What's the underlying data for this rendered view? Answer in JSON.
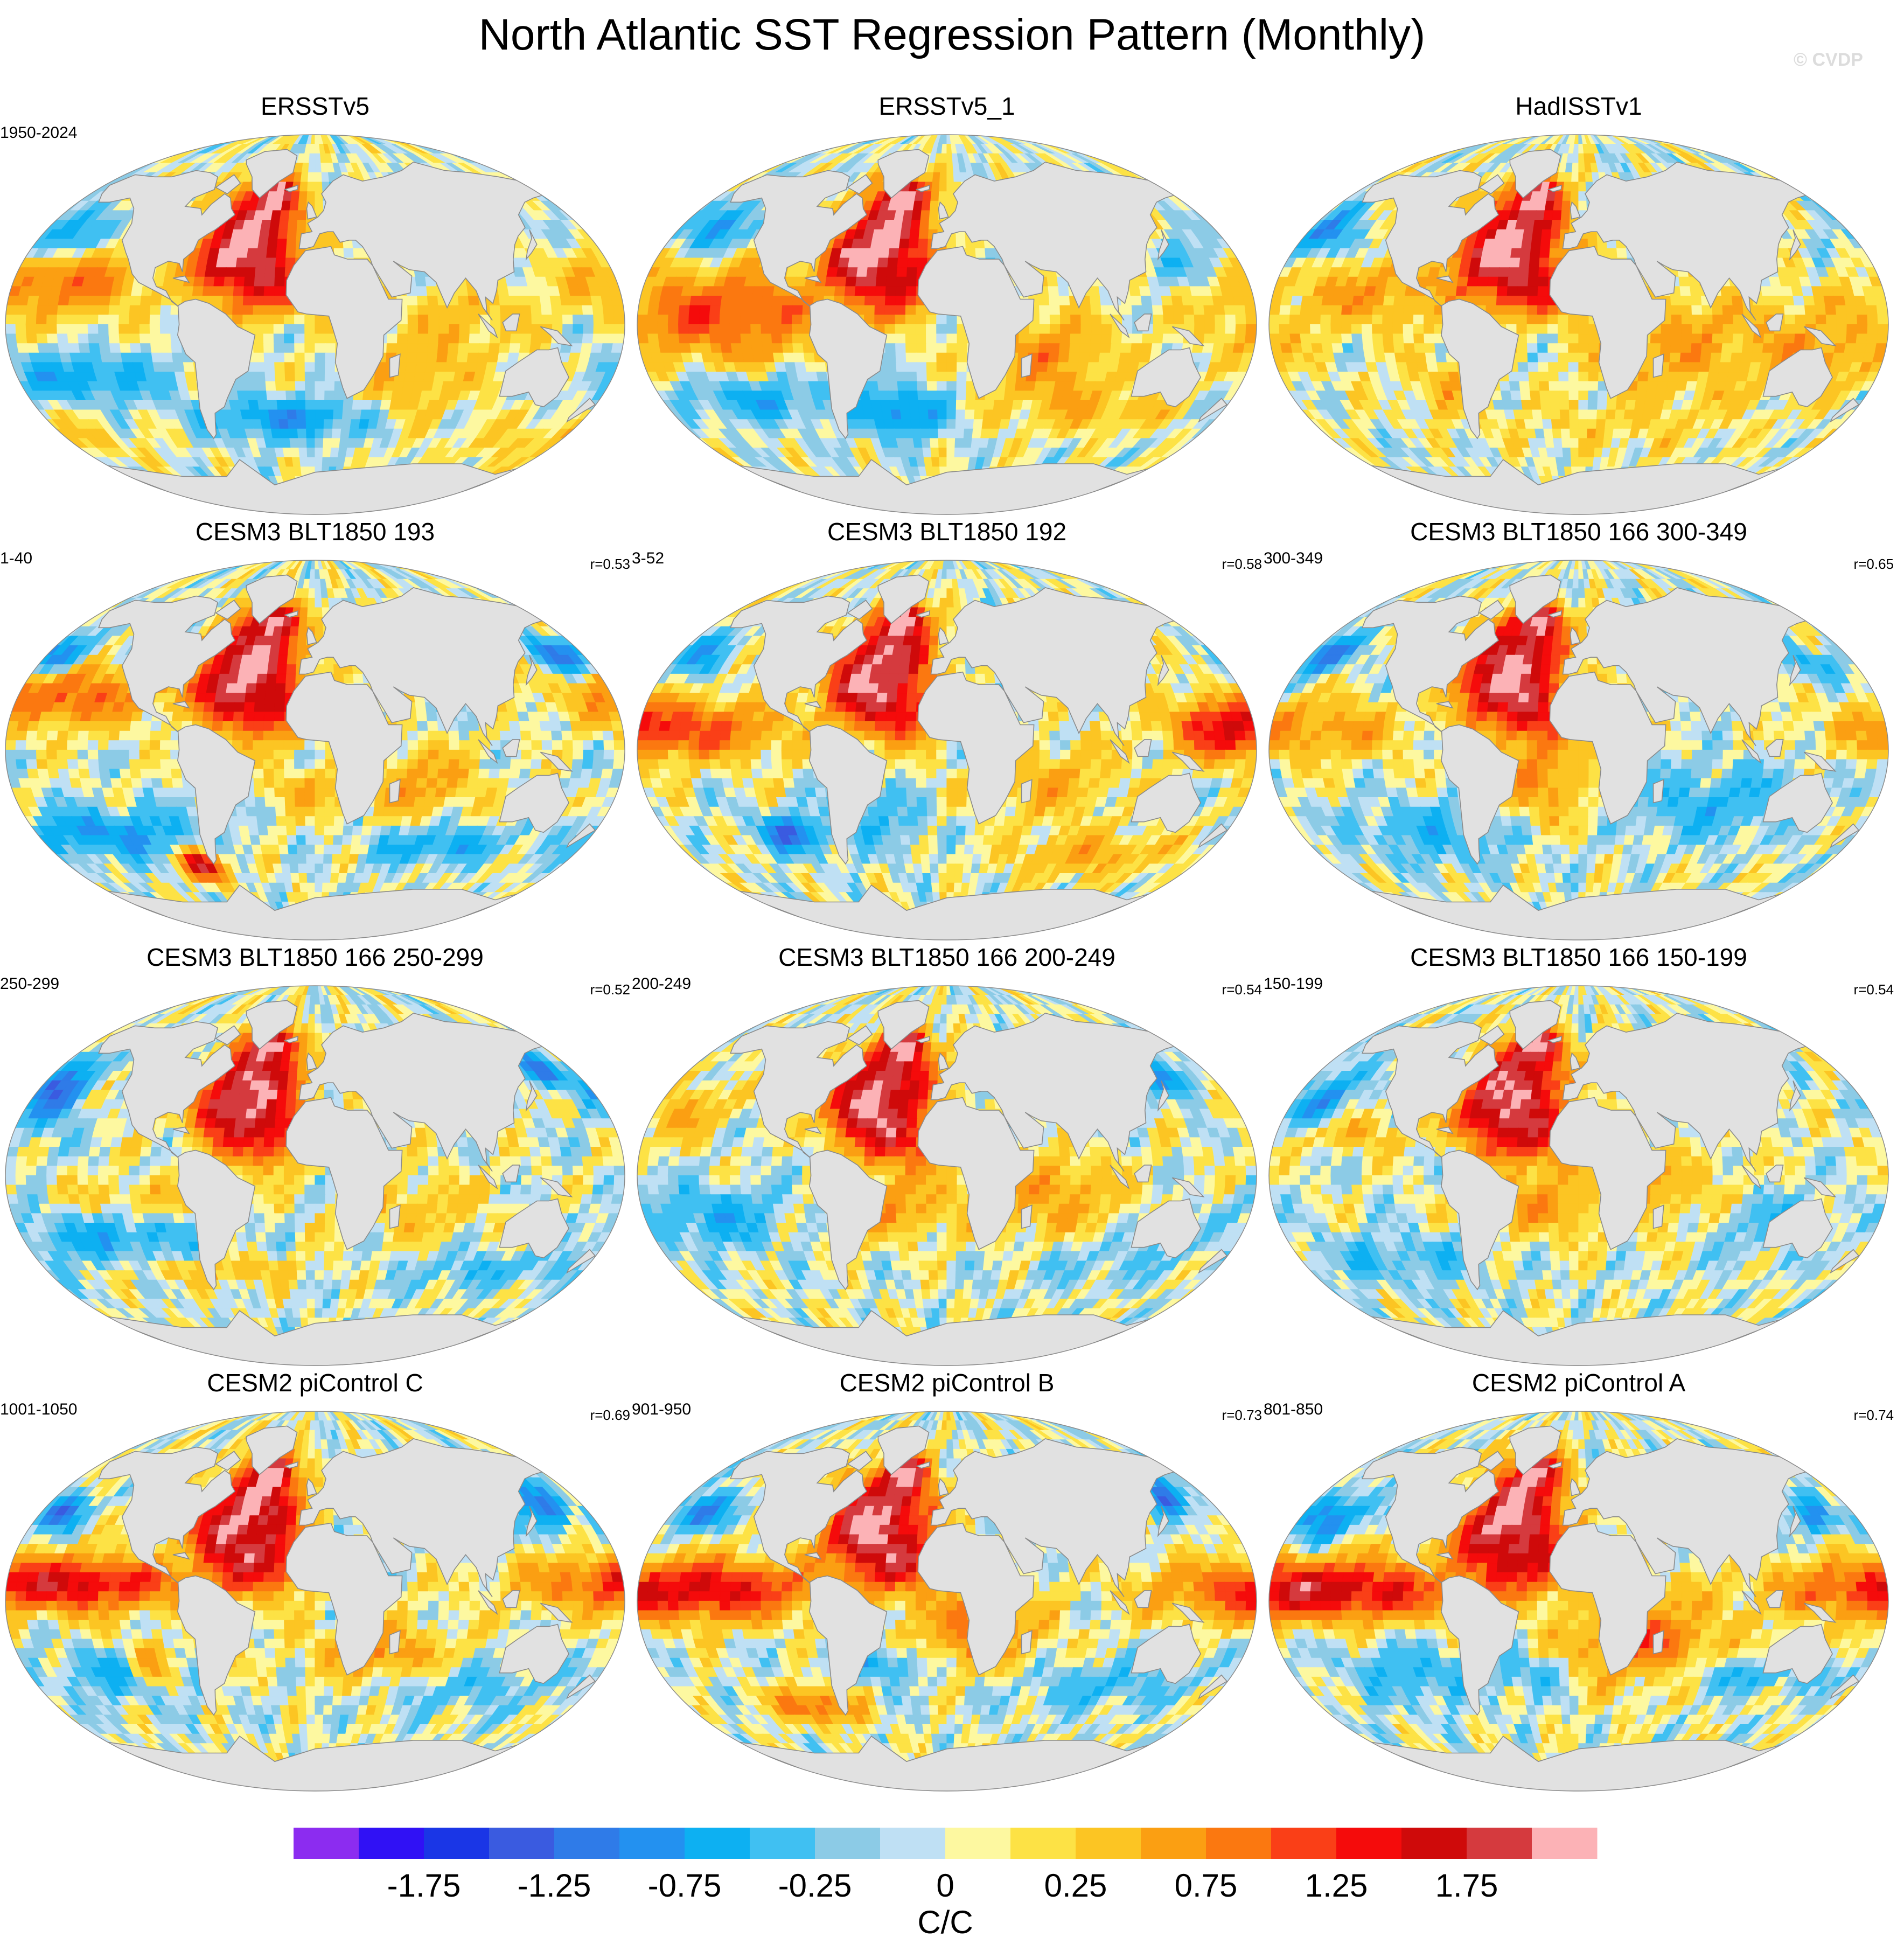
{
  "title": "North Atlantic SST Regression Pattern (Monthly)",
  "watermark": "© CVDP",
  "colors": {
    "land": "#e1e1e1",
    "coast": "#8a8a8a",
    "map_border": "#8a8a8a"
  },
  "panels": [
    {
      "title": "ERSSTv5",
      "years": "1950-2024",
      "r": "",
      "variant": 0
    },
    {
      "title": "ERSSTv5_1",
      "years": "",
      "r": "",
      "variant": 1
    },
    {
      "title": "HadISSTv1",
      "years": "",
      "r": "",
      "variant": 2
    },
    {
      "title": "CESM3 BLT1850 193",
      "years": "1-40",
      "r": "r=0.53",
      "variant": 3
    },
    {
      "title": "CESM3 BLT1850 192",
      "years": "3-52",
      "r": "r=0.58",
      "variant": 4
    },
    {
      "title": "CESM3 BLT1850 166 300-349",
      "years": "300-349",
      "r": "r=0.65",
      "variant": 5
    },
    {
      "title": "CESM3 BLT1850 166 250-299",
      "years": "250-299",
      "r": "r=0.52",
      "variant": 6
    },
    {
      "title": "CESM3 BLT1850 166 200-249",
      "years": "200-249",
      "r": "r=0.54",
      "variant": 7
    },
    {
      "title": "CESM3 BLT1850 166 150-199",
      "years": "150-199",
      "r": "r=0.54",
      "variant": 8
    },
    {
      "title": "CESM2 piControl C",
      "years": "1001-1050",
      "r": "r=0.69",
      "variant": 9
    },
    {
      "title": "CESM2 piControl B",
      "years": "901-950",
      "r": "r=0.73",
      "variant": 10
    },
    {
      "title": "CESM2 piControl A",
      "years": "801-850",
      "r": "r=0.74",
      "variant": 11
    }
  ],
  "chart_data": {
    "type": "heatmap",
    "title": "North Atlantic SST Regression Pattern (Monthly)",
    "units": "C/C",
    "colorbar": {
      "levels": [
        -2.0,
        -1.75,
        -1.5,
        -1.25,
        -1.0,
        -0.75,
        -0.5,
        -0.25,
        -0.1,
        0,
        0.1,
        0.25,
        0.5,
        0.75,
        1.0,
        1.25,
        1.5,
        1.75,
        2.0
      ],
      "colors": [
        "#8c2cf0",
        "#3011f5",
        "#1a36e6",
        "#3a5be0",
        "#2f7be8",
        "#2391f0",
        "#0db0f2",
        "#40c0f2",
        "#8ccbe6",
        "#bfe0f4",
        "#fdf8a0",
        "#fde245",
        "#fcc523",
        "#fb9f12",
        "#fb7810",
        "#fa3f17",
        "#f50b0b",
        "#cf0a0a",
        "#d53a3e",
        "#fcb2b6"
      ],
      "tick_labels": [
        "-1.75",
        "-1.25",
        "-0.75",
        "-0.25",
        "0",
        "0.25",
        "0.75",
        "1.25",
        "1.75"
      ],
      "label": "C/C"
    },
    "panels": [
      "ERSSTv5",
      "ERSSTv5_1",
      "HadISSTv1",
      "CESM3 BLT1850 193",
      "CESM3 BLT1850 192",
      "CESM3 BLT1850 166 300-349",
      "CESM3 BLT1850 166 250-299",
      "CESM3 BLT1850 166 200-249",
      "CESM3 BLT1850 166 150-199",
      "CESM2 piControl C",
      "CESM2 piControl B",
      "CESM2 piControl A"
    ]
  }
}
